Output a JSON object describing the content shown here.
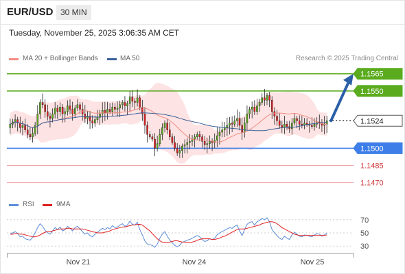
{
  "header": {
    "symbol": "EUR/USD",
    "timeframe": "30 MIN"
  },
  "timestamp": "Tuesday, November 25, 2025 3:06:35 AM CET",
  "legend": {
    "ma20_label": "MA 20 + Bollinger Bands",
    "ma50_label": "MA 50",
    "ma20_color": "#f28b82",
    "ma50_color": "#3a5f99"
  },
  "source": "Research © 2025 Trading Central",
  "rsi_legend": {
    "rsi_label": "RSI",
    "ma9_label": "9MA",
    "rsi_color": "#5b8cd9",
    "ma9_color": "#e02020"
  },
  "colors": {
    "resistance": "#5aab1e",
    "pivot": "#3d7ee8",
    "support": "#f2a5a5",
    "last": "#333333",
    "arrow": "#2b5fa8",
    "candle_up": "#5aab1e",
    "candle_down": "#e02424",
    "band_fill": "#fde0e0"
  },
  "chart_data": [
    {
      "type": "candlestick",
      "x_axis_labels": [
        "Nov 21",
        "Nov 24",
        "Nov 25"
      ],
      "ylim": [
        1.1462,
        1.1572
      ],
      "levels": [
        {
          "value": 1.1565,
          "label": "1.1565",
          "kind": "resistance"
        },
        {
          "value": 1.155,
          "label": "1.1550",
          "kind": "resistance"
        },
        {
          "value": 1.1524,
          "label": "1.1524",
          "kind": "last"
        },
        {
          "value": 1.15,
          "label": "1.1500",
          "kind": "pivot"
        },
        {
          "value": 1.1485,
          "label": "1.1485",
          "kind": "support"
        },
        {
          "value": 1.147,
          "label": "1.1470",
          "kind": "support"
        }
      ],
      "forecast_target": 1.1565,
      "close": [
        1.1521,
        1.1523,
        1.1525,
        1.1522,
        1.1518,
        1.152,
        1.1516,
        1.1512,
        1.151,
        1.1513,
        1.152,
        1.153,
        1.154,
        1.1538,
        1.1532,
        1.1528,
        1.1526,
        1.153,
        1.1535,
        1.1532,
        1.1536,
        1.153,
        1.1532,
        1.1537,
        1.1534,
        1.153,
        1.1535,
        1.1538,
        1.1534,
        1.153,
        1.1526,
        1.1528,
        1.1524,
        1.1522,
        1.1525,
        1.1527,
        1.153,
        1.1533,
        1.1531,
        1.1534,
        1.1532,
        1.1536,
        1.1534,
        1.1535,
        1.1538,
        1.154,
        1.1537,
        1.1539,
        1.1545,
        1.1541,
        1.154,
        1.1544,
        1.1536,
        1.153,
        1.152,
        1.1512,
        1.151,
        1.1508,
        1.15,
        1.1504,
        1.1512,
        1.1518,
        1.1522,
        1.1516,
        1.151,
        1.1505,
        1.15,
        1.1496,
        1.1498,
        1.1502,
        1.1503,
        1.1505,
        1.1506,
        1.1508,
        1.151,
        1.1512,
        1.151,
        1.1506,
        1.1503,
        1.1504,
        1.1506,
        1.1505,
        1.1507,
        1.1511,
        1.1514,
        1.1516,
        1.1518,
        1.152,
        1.1522,
        1.1521,
        1.1524,
        1.1526,
        1.152,
        1.1514,
        1.1522,
        1.153,
        1.1534,
        1.1536,
        1.1532,
        1.1537,
        1.154,
        1.1544,
        1.1542,
        1.1546,
        1.1542,
        1.1532,
        1.1528,
        1.1524,
        1.152,
        1.1518,
        1.1521,
        1.1519,
        1.1517,
        1.1522,
        1.1526,
        1.1524,
        1.1521,
        1.152,
        1.1522,
        1.1521,
        1.152,
        1.1519,
        1.1521,
        1.1523,
        1.1522,
        1.152,
        1.1521,
        1.1524
      ]
    },
    {
      "type": "line",
      "title": "RSI",
      "yticks": [
        70,
        50,
        30
      ],
      "ylim": [
        25,
        75
      ],
      "series": [
        {
          "name": "RSI",
          "values": [
            48,
            50,
            52,
            49,
            44,
            45,
            41,
            40,
            39,
            43,
            50,
            58,
            64,
            60,
            54,
            50,
            48,
            53,
            58,
            55,
            59,
            53,
            55,
            60,
            57,
            53,
            58,
            60,
            56,
            52,
            48,
            50,
            46,
            44,
            48,
            51,
            54,
            57,
            55,
            58,
            56,
            61,
            58,
            59,
            62,
            64,
            60,
            62,
            68,
            63,
            62,
            66,
            55,
            47,
            38,
            33,
            32,
            31,
            28,
            33,
            42,
            48,
            52,
            45,
            39,
            35,
            31,
            29,
            31,
            36,
            37,
            39,
            40,
            42,
            44,
            46,
            44,
            40,
            37,
            38,
            41,
            40,
            42,
            47,
            50,
            52,
            54,
            56,
            58,
            57,
            60,
            62,
            53,
            46,
            55,
            63,
            66,
            67,
            62,
            67,
            69,
            72,
            70,
            73,
            67,
            55,
            50,
            46,
            42,
            40,
            45,
            42,
            40,
            47,
            51,
            48,
            45,
            44,
            47,
            46,
            45,
            44,
            47,
            49,
            48,
            45,
            47,
            50
          ]
        },
        {
          "name": "9MA",
          "values": [
            48,
            48,
            49,
            49,
            48,
            48,
            47,
            46,
            45,
            44,
            44,
            45,
            47,
            49,
            51,
            52,
            52,
            53,
            54,
            55,
            56,
            56,
            56,
            57,
            57,
            56,
            56,
            56,
            56,
            56,
            55,
            54,
            53,
            52,
            51,
            50,
            50,
            50,
            51,
            52,
            53,
            55,
            56,
            57,
            58,
            59,
            59,
            60,
            61,
            62,
            62,
            63,
            63,
            62,
            59,
            56,
            53,
            49,
            45,
            41,
            38,
            36,
            35,
            35,
            36,
            37,
            38,
            38,
            37,
            36,
            36,
            35,
            35,
            36,
            37,
            39,
            40,
            41,
            41,
            41,
            41,
            40,
            40,
            41,
            42,
            44,
            45,
            47,
            49,
            51,
            53,
            55,
            56,
            56,
            56,
            57,
            58,
            59,
            60,
            61,
            62,
            64,
            65,
            66,
            67,
            67,
            66,
            64,
            61,
            58,
            56,
            54,
            52,
            50,
            48,
            47,
            46,
            46,
            46,
            46,
            46,
            46,
            46,
            46,
            46,
            46,
            46,
            47
          ]
        }
      ]
    }
  ]
}
